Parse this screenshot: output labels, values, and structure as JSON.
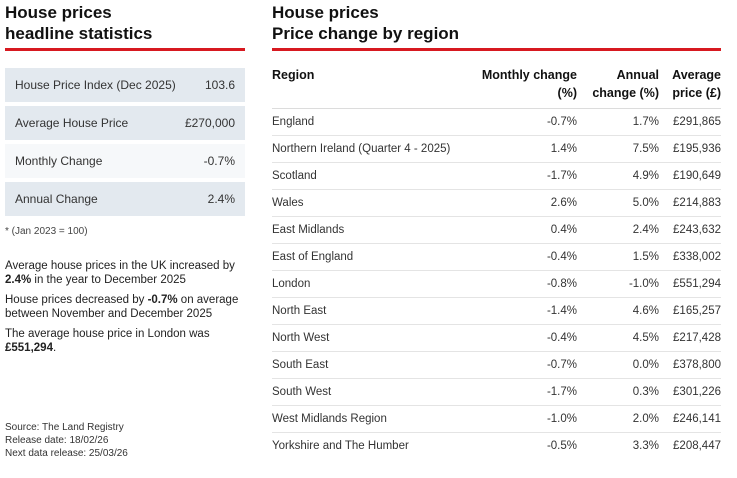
{
  "left": {
    "heading_line1": "House prices",
    "heading_line2": "headline statistics",
    "stats": [
      {
        "label": "House Price Index (Dec 2025)",
        "value": "103.6"
      },
      {
        "label": "Average House Price",
        "value": "£270,000"
      },
      {
        "label": "Monthly Change",
        "value": "-0.7%"
      },
      {
        "label": "Annual Change",
        "value": "2.4%"
      }
    ],
    "note": "* (Jan 2023 = 100)",
    "summary": {
      "p1_pre": "Average house prices in the UK increased by ",
      "p1_bold": "2.4%",
      "p1_post": " in the year to December 2025",
      "p2_pre": "House prices decreased by ",
      "p2_bold": "-0.7%",
      "p2_post": " on average between November and December 2025",
      "p3_pre": "The average house price in London was ",
      "p3_bold": "£551,294",
      "p3_post": "."
    },
    "source": {
      "line1": "Source: The Land Registry",
      "line2": "Release date: 18/02/26",
      "line3": "Next data release: 25/03/26"
    }
  },
  "right": {
    "heading_line1": "House prices",
    "heading_line2": "Price change by region",
    "columns": {
      "region": "Region",
      "monthly_1": "Monthly change",
      "monthly_2": "(%)",
      "annual_1": "Annual",
      "annual_2": "change (%)",
      "avg_1": "Average",
      "avg_2": "price (£)"
    },
    "rows": [
      {
        "region": "England",
        "monthly": "-0.7%",
        "annual": "1.7%",
        "price": "£291,865"
      },
      {
        "region": "Northern Ireland (Quarter 4 - 2025)",
        "monthly": "1.4%",
        "annual": "7.5%",
        "price": "£195,936"
      },
      {
        "region": "Scotland",
        "monthly": "-1.7%",
        "annual": "4.9%",
        "price": "£190,649"
      },
      {
        "region": "Wales",
        "monthly": "2.6%",
        "annual": "5.0%",
        "price": "£214,883"
      },
      {
        "region": "East Midlands",
        "monthly": "0.4%",
        "annual": "2.4%",
        "price": "£243,632"
      },
      {
        "region": "East of England",
        "monthly": "-0.4%",
        "annual": "1.5%",
        "price": "£338,002"
      },
      {
        "region": "London",
        "monthly": "-0.8%",
        "annual": "-1.0%",
        "price": "£551,294"
      },
      {
        "region": "North East",
        "monthly": "-1.4%",
        "annual": "4.6%",
        "price": "£165,257"
      },
      {
        "region": "North West",
        "monthly": "-0.4%",
        "annual": "4.5%",
        "price": "£217,428"
      },
      {
        "region": "South East",
        "monthly": "-0.7%",
        "annual": "0.0%",
        "price": "£378,800"
      },
      {
        "region": "South West",
        "monthly": "-1.7%",
        "annual": "0.3%",
        "price": "£301,226"
      },
      {
        "region": "West Midlands Region",
        "monthly": "-1.0%",
        "annual": "2.0%",
        "price": "£246,141"
      },
      {
        "region": "Yorkshire and The Humber",
        "monthly": "-0.5%",
        "annual": "3.3%",
        "price": "£208,447"
      }
    ]
  },
  "colors": {
    "accent_red": "#d71920",
    "stat_bg": "#e3e9ef"
  }
}
